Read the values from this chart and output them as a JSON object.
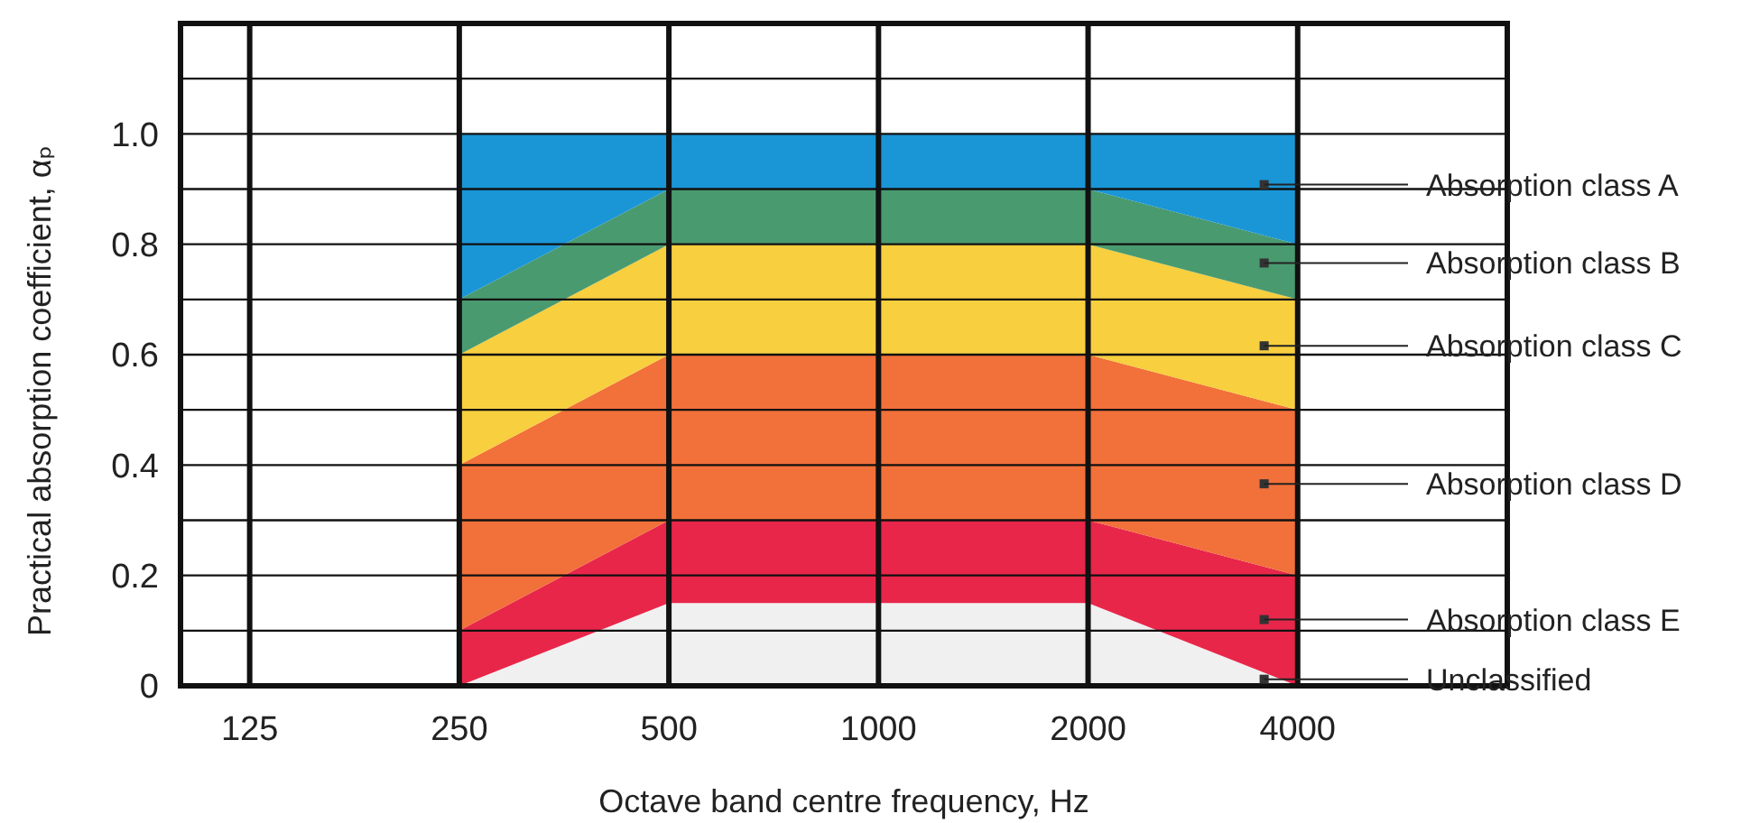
{
  "chart_data": {
    "type": "area",
    "stacked": true,
    "xlabel": "Octave band centre frequency, Hz",
    "ylabel": "Practical absorption coefficient, αₚ",
    "categories": [
      "125",
      "250",
      "500",
      "1000",
      "2000",
      "4000"
    ],
    "ylim": [
      0,
      1.2
    ],
    "yticks": [
      {
        "value": 0,
        "label": "0"
      },
      {
        "value": 0.1,
        "label": null
      },
      {
        "value": 0.2,
        "label": "0.2"
      },
      {
        "value": 0.3,
        "label": null
      },
      {
        "value": 0.4,
        "label": "0.4"
      },
      {
        "value": 0.5,
        "label": null
      },
      {
        "value": 0.6,
        "label": "0.6"
      },
      {
        "value": 0.7,
        "label": null
      },
      {
        "value": 0.8,
        "label": "0.8"
      },
      {
        "value": 0.9,
        "label": null
      },
      {
        "value": 1.0,
        "label": "1.0"
      },
      {
        "value": 1.1,
        "label": null
      },
      {
        "value": 1.2,
        "label": null
      }
    ],
    "grid": true,
    "series": [
      {
        "name": "Unclassified",
        "color": "#f0f0f0",
        "values": [
          null,
          0,
          0.15,
          0.15,
          0.15,
          0
        ]
      },
      {
        "name": "Absorption class E",
        "color": "#e8264a",
        "values": [
          null,
          0.1,
          0.15,
          0.15,
          0.15,
          0.2
        ]
      },
      {
        "name": "Absorption class D",
        "color": "#f2703a",
        "values": [
          null,
          0.3,
          0.3,
          0.3,
          0.3,
          0.3
        ]
      },
      {
        "name": "Absorption class C",
        "color": "#f7cf3f",
        "values": [
          null,
          0.2,
          0.2,
          0.2,
          0.2,
          0.2
        ]
      },
      {
        "name": "Absorption class B",
        "color": "#4a9a70",
        "values": [
          null,
          0.1,
          0.1,
          0.1,
          0.1,
          0.1
        ]
      },
      {
        "name": "Absorption class A",
        "color": "#1a96d6",
        "values": [
          null,
          0.3,
          0.1,
          0.1,
          0.1,
          0.2
        ]
      }
    ]
  }
}
